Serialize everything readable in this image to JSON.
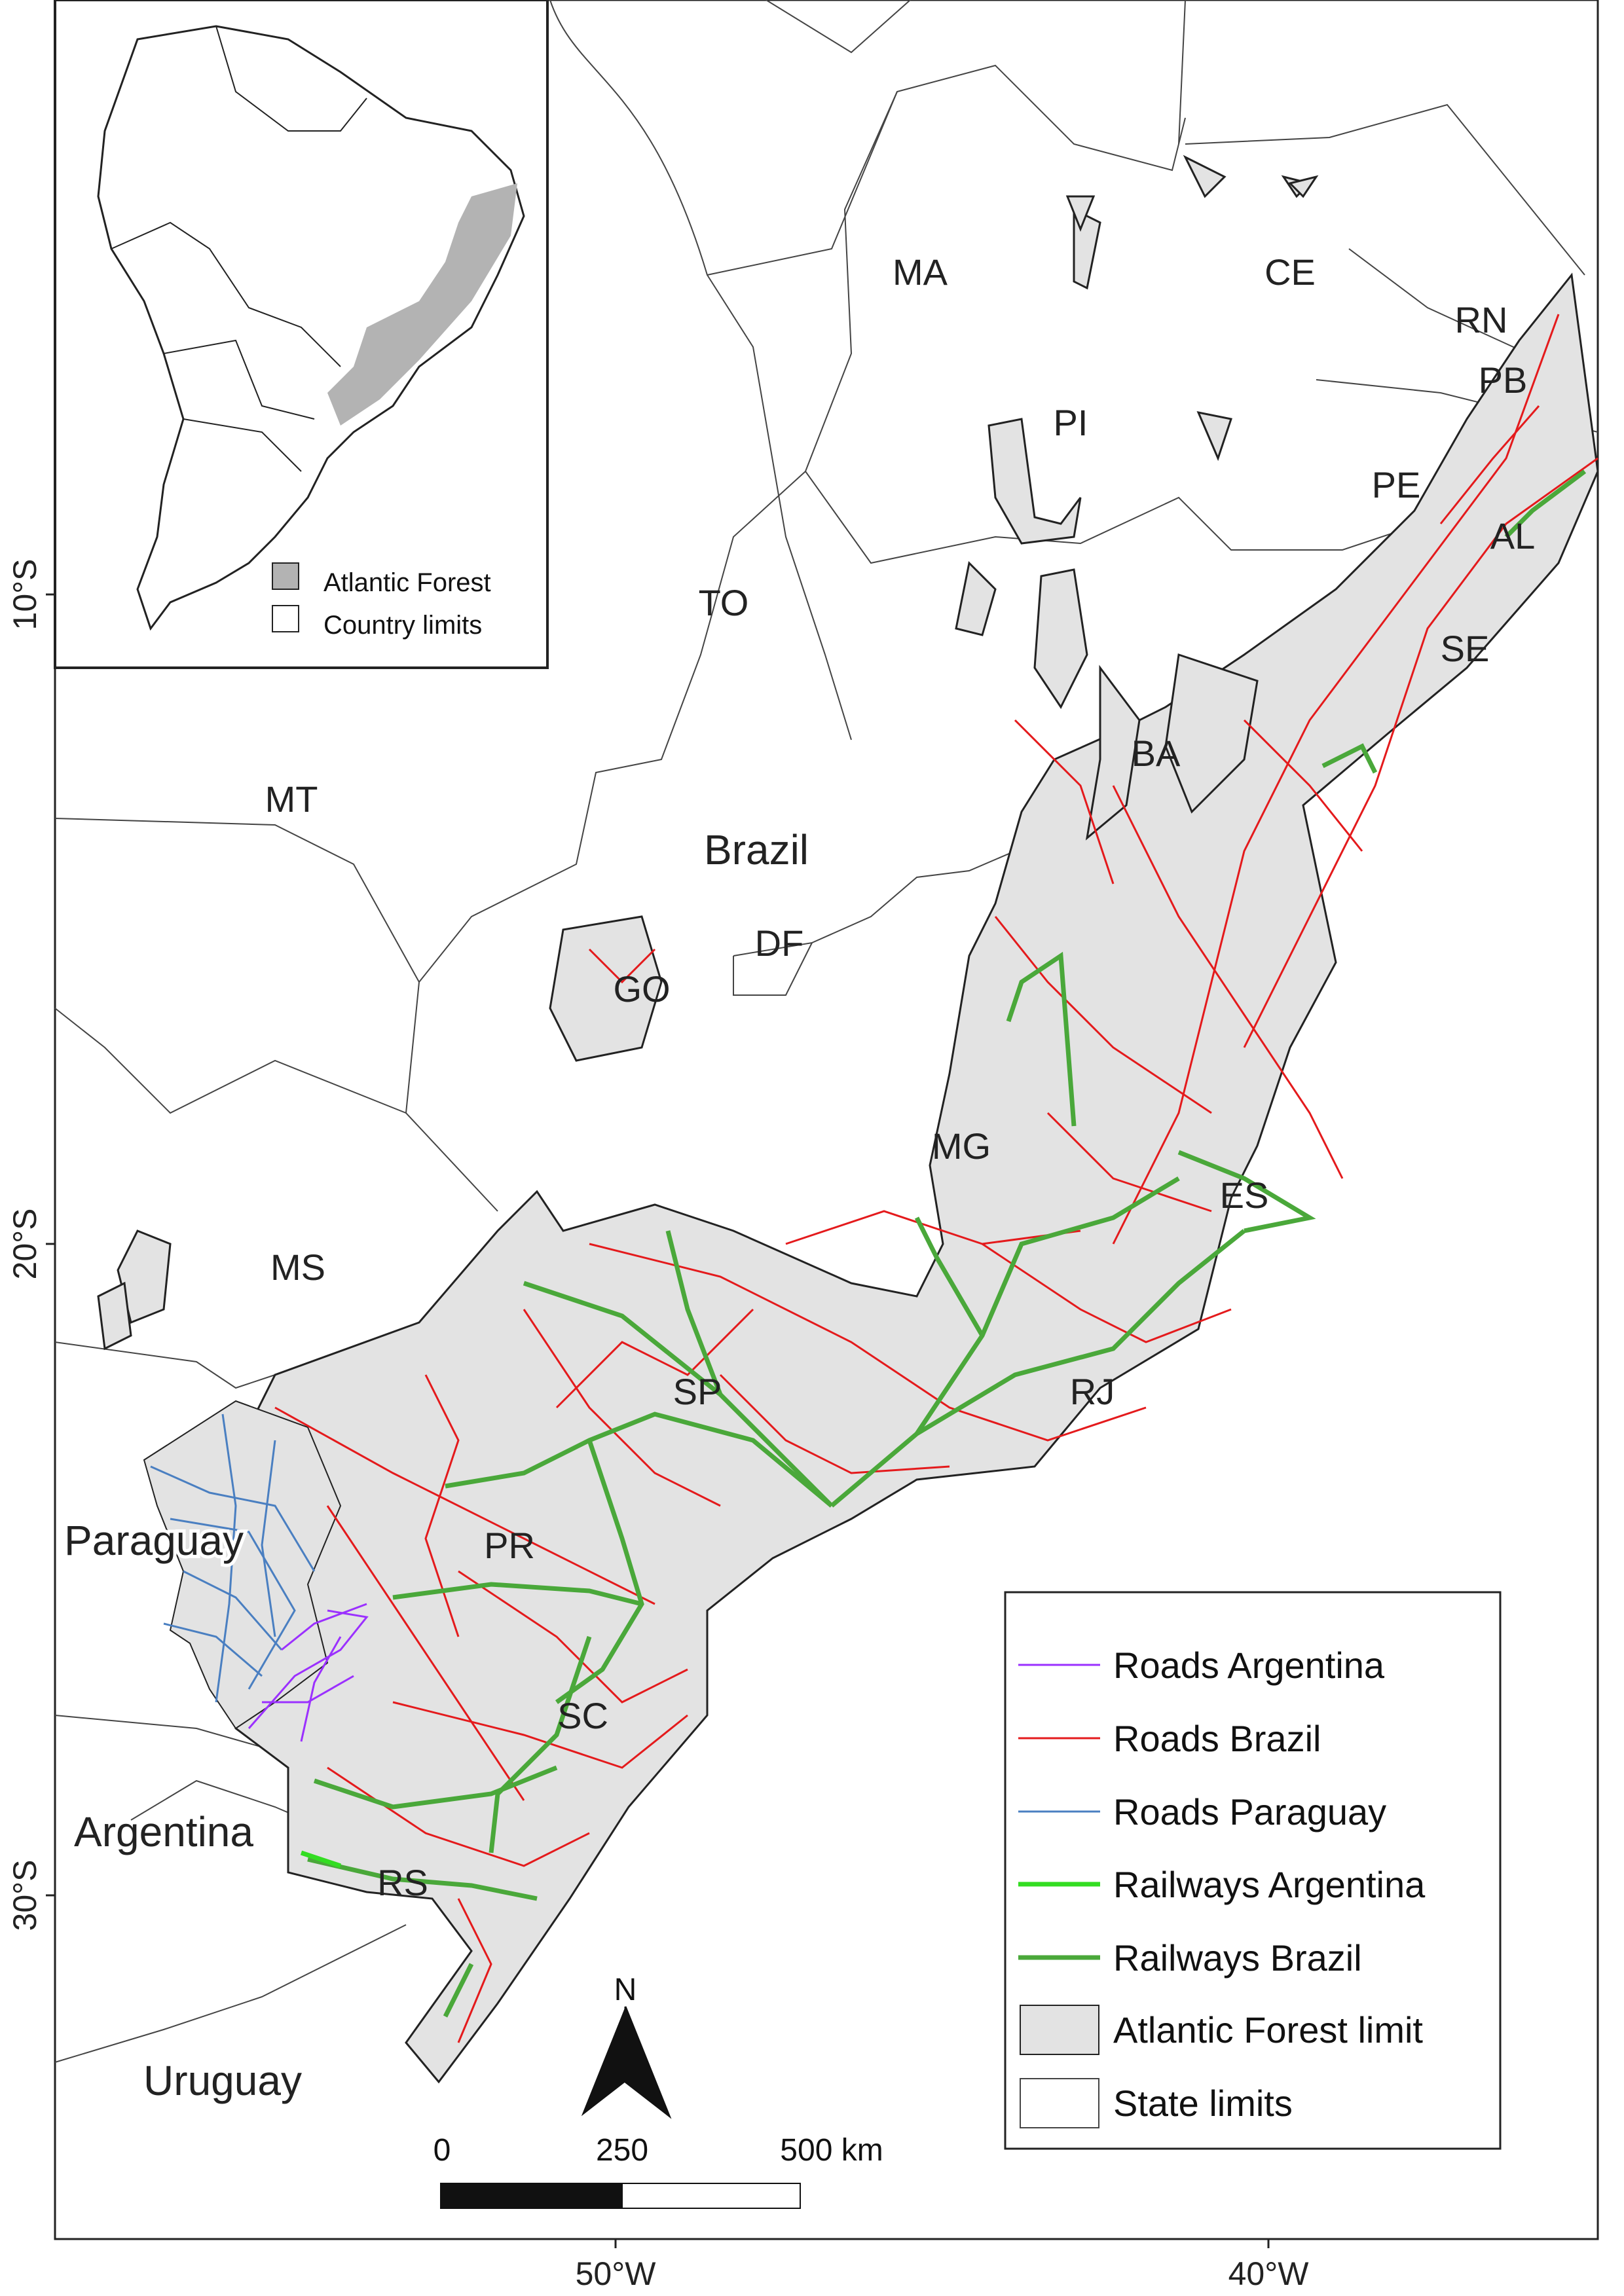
{
  "states": [
    "MA",
    "CE",
    "RN",
    "PB",
    "PI",
    "PE",
    "AL",
    "TO",
    "SE",
    "BA",
    "MT",
    "GO",
    "DF",
    "MG",
    "ES",
    "MS",
    "SP",
    "RJ",
    "PR",
    "SC",
    "RS"
  ],
  "countries": [
    "Brazil",
    "Paraguay",
    "Argentina",
    "Uruguay"
  ],
  "axis": {
    "lat": [
      "10°S",
      "20°S",
      "30°S"
    ],
    "lon": [
      "50°W",
      "40°W"
    ]
  },
  "inset_legend": {
    "items": [
      {
        "label": "Atlantic Forest",
        "fill": "#b3b3b3"
      },
      {
        "label": "Country limits",
        "fill": "#ffffff"
      }
    ]
  },
  "legend": {
    "items": [
      {
        "label": "Roads Argentina",
        "color": "#9b30ff",
        "kind": "line"
      },
      {
        "label": "Roads Brazil",
        "color": "#e41a1c",
        "kind": "line"
      },
      {
        "label": "Roads Paraguay",
        "color": "#4a7fc1",
        "kind": "line"
      },
      {
        "label": "Railways Argentina",
        "color": "#33dd22",
        "kind": "thickline"
      },
      {
        "label": "Railways Brazil",
        "color": "#4aa83a",
        "kind": "thickline"
      },
      {
        "label": "Atlantic Forest limit",
        "color": "#e3e3e3",
        "kind": "box"
      },
      {
        "label": "State limits",
        "color": "#ffffff",
        "kind": "box"
      }
    ]
  },
  "scale_bar": {
    "labels": [
      "0",
      "250",
      "500 km"
    ]
  },
  "north_arrow": {
    "label": "N"
  },
  "colors": {
    "forest": "#e3e3e3",
    "road_brazil": "#e41a1c",
    "road_paraguay": "#4a7fc1",
    "road_argentina": "#9b30ff",
    "rail_brazil": "#4aa83a",
    "rail_argentina": "#33dd22"
  }
}
